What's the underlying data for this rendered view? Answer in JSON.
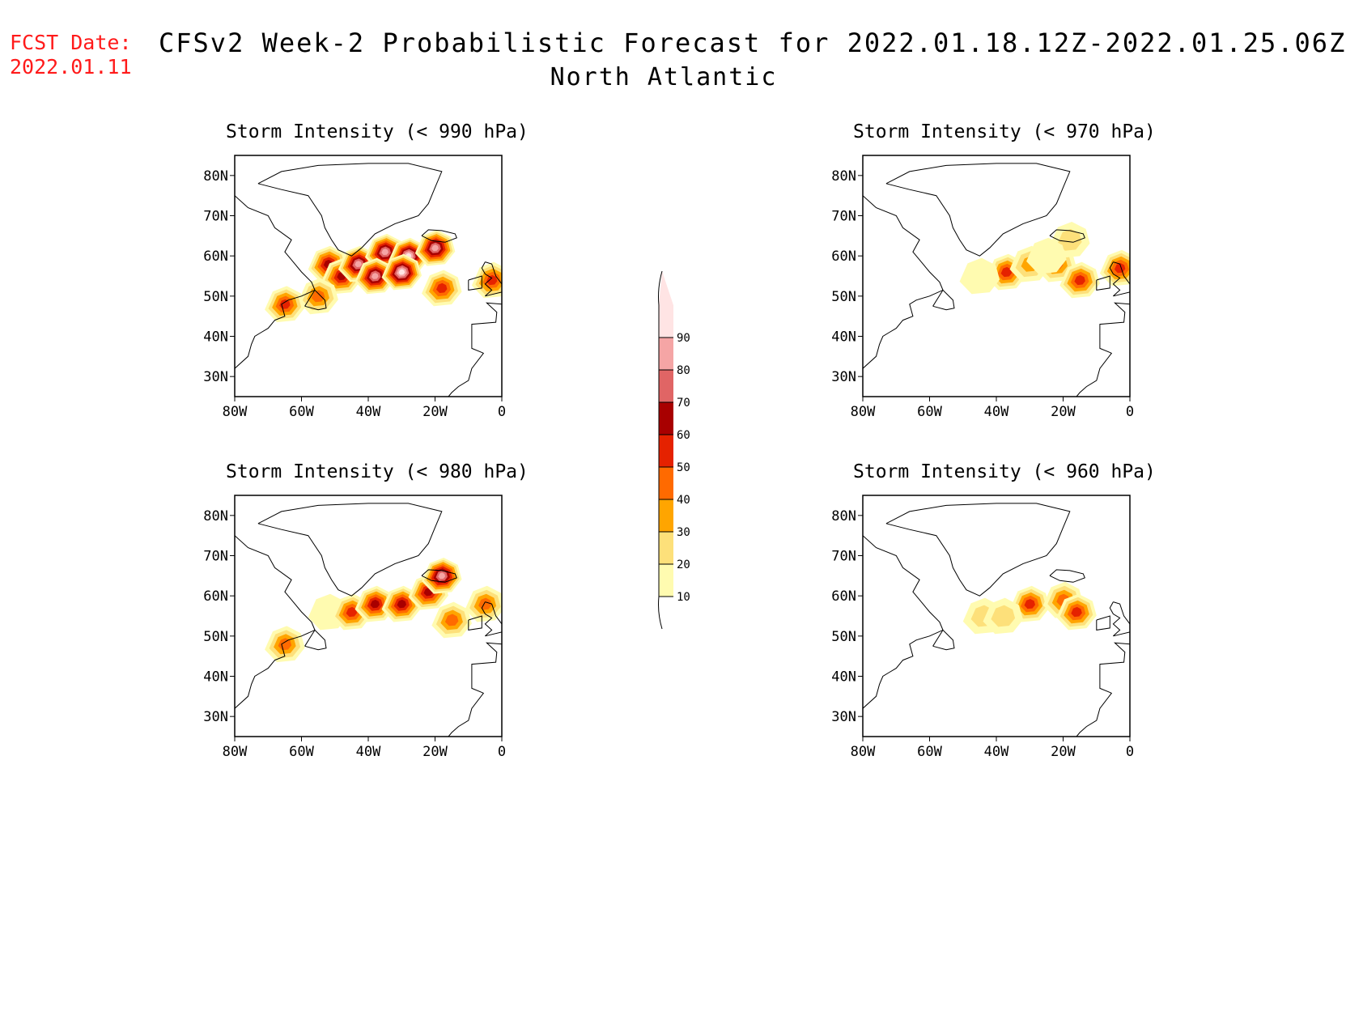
{
  "fcst": {
    "label": "FCST Date:",
    "date": "2022.01.11"
  },
  "title": {
    "line1": "CFSv2 Week-2 Probabilistic Forecast for 2022.01.18.12Z-2022.01.25.06Z",
    "line2": "North Atlantic"
  },
  "axes": {
    "lat_ticks": [
      "80N",
      "70N",
      "60N",
      "50N",
      "40N",
      "30N"
    ],
    "lon_ticks": [
      "80W",
      "60W",
      "40W",
      "20W",
      "0"
    ],
    "lat_range": [
      25,
      85
    ],
    "lon_range": [
      -80,
      0
    ]
  },
  "colorbar": {
    "levels": [
      "10",
      "20",
      "30",
      "40",
      "50",
      "60",
      "70",
      "80",
      "90"
    ],
    "colors": [
      "#fffbb0",
      "#fde07a",
      "#ffa500",
      "#ff6a00",
      "#e52200",
      "#a80000",
      "#e06565",
      "#f5a5a5",
      "#ffe4e4"
    ]
  },
  "panels": [
    {
      "id": "p990",
      "title": "Storm Intensity (< 990 hPa)",
      "blobs": [
        {
          "lon": -52,
          "lat": 58,
          "level": 5
        },
        {
          "lon": -48,
          "lat": 55,
          "level": 5
        },
        {
          "lon": -43,
          "lat": 58,
          "level": 7
        },
        {
          "lon": -35,
          "lat": 61,
          "level": 7
        },
        {
          "lon": -28,
          "lat": 60,
          "level": 8
        },
        {
          "lon": -20,
          "lat": 62,
          "level": 7
        },
        {
          "lon": -18,
          "lat": 52,
          "level": 4
        },
        {
          "lon": -55,
          "lat": 50,
          "level": 3
        },
        {
          "lon": -65,
          "lat": 48,
          "level": 4
        },
        {
          "lon": -3,
          "lat": 54,
          "level": 4
        },
        {
          "lon": -38,
          "lat": 55,
          "level": 7
        },
        {
          "lon": -30,
          "lat": 56,
          "level": 8
        }
      ]
    },
    {
      "id": "p970",
      "title": "Storm Intensity (< 970 hPa)",
      "blobs": [
        {
          "lon": -37,
          "lat": 56,
          "level": 4
        },
        {
          "lon": -30,
          "lat": 58,
          "level": 2
        },
        {
          "lon": -22,
          "lat": 58,
          "level": 3
        },
        {
          "lon": -15,
          "lat": 54,
          "level": 4
        },
        {
          "lon": -45,
          "lat": 55,
          "level": 0
        },
        {
          "lon": -3,
          "lat": 57,
          "level": 4
        },
        {
          "lon": -18,
          "lat": 64,
          "level": 1
        },
        {
          "lon": -25,
          "lat": 60,
          "level": 0
        }
      ]
    },
    {
      "id": "p980",
      "title": "Storm Intensity (< 980 hPa)",
      "blobs": [
        {
          "lon": -52,
          "lat": 56,
          "level": 0
        },
        {
          "lon": -45,
          "lat": 56,
          "level": 4
        },
        {
          "lon": -38,
          "lat": 58,
          "level": 5
        },
        {
          "lon": -30,
          "lat": 58,
          "level": 5
        },
        {
          "lon": -22,
          "lat": 61,
          "level": 5
        },
        {
          "lon": -18,
          "lat": 65,
          "level": 7
        },
        {
          "lon": -5,
          "lat": 58,
          "level": 3
        },
        {
          "lon": -65,
          "lat": 48,
          "level": 3
        },
        {
          "lon": -15,
          "lat": 54,
          "level": 3
        }
      ]
    },
    {
      "id": "p960",
      "title": "Storm Intensity (< 960 hPa)",
      "blobs": [
        {
          "lon": -30,
          "lat": 58,
          "level": 4
        },
        {
          "lon": -20,
          "lat": 59,
          "level": 3
        },
        {
          "lon": -16,
          "lat": 56,
          "level": 4
        },
        {
          "lon": -44,
          "lat": 55,
          "level": 1
        },
        {
          "lon": -38,
          "lat": 55,
          "level": 1
        }
      ]
    }
  ]
}
